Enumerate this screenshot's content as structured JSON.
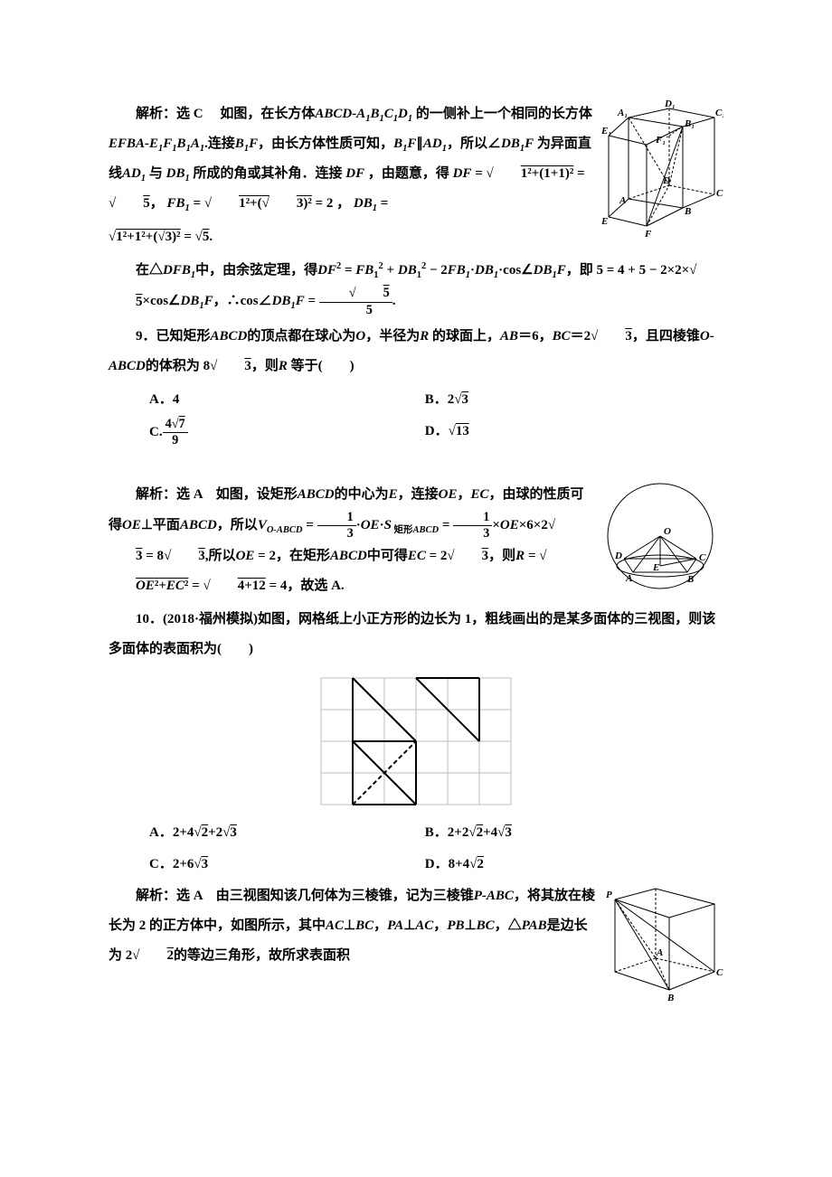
{
  "sol8": {
    "prefix": "解析：选 C　  如图，在长方体",
    "cuboid1": "ABCD-A",
    "t1": " 的一侧补上一个相同的长方体",
    "cuboid2": "EFBA-E",
    "t2": ".连接",
    "b1f": "B",
    "f": "F",
    "t3": "，由长方体性质可知，",
    "parallel": "∥",
    "ad1": "AD",
    "t4": "，所以∠",
    "db1f": "DB",
    "t5": " 为异面直线",
    "t6": " 与 ",
    "db1": "DB",
    "t7": " 所成的角或其补角．连接 ",
    "df": "DF",
    "t8": " ，由题意，得",
    "df_eq": " =",
    "eq1a": "1²+(1+1)²",
    "eq1b": "5",
    "fb1_eq": " = ",
    "eq2a": "1²+(",
    "eq2b": "3",
    "eq2c": ")²",
    "eq2_result": " = 2 ， ",
    "db1_eq": " = ",
    "eq3a": "1²+1²+(",
    "eq3b": "3",
    "eq3c": ")²",
    "eq3_result": "5",
    "period": ".",
    "line_cos1": "在△",
    "dfb1": "DFB",
    "line_cos2": "中，由余弦定理，得",
    "df2": "DF",
    "fb2": "FB",
    "plus": " + ",
    "minus": " − 2",
    "dot": "·",
    "cos_prefix": "cos∠",
    "ie": "，即 5 = 4 + 5 − 2×2×",
    "times": "×cos∠",
    "therefore": "，∴cos∠",
    "eq_final": " = ",
    "frac_num": "5",
    "frac_den": "5",
    "fig8": {
      "labels": [
        "D₁",
        "C₁",
        "A₁",
        "B₁",
        "E₁",
        "F₁",
        "D",
        "C",
        "A",
        "B",
        "E",
        "F"
      ],
      "stroke": "#000000"
    }
  },
  "q9": {
    "num": "9．",
    "text1": "已知矩形",
    "abcd": "ABCD",
    "text2": "的顶点都在球心为",
    "o": "O",
    "text3": "，半径为",
    "r": "R",
    "text4": " 的球面上，",
    "ab": "AB",
    "eq6": "＝6，",
    "bc": "BC",
    "eq2s3": "＝2",
    "s3": "3",
    "text5": "，且四棱锥",
    "oabcd": "O-ABCD",
    "text6": "的体积为 8",
    "text7": "，则",
    "text8": " 等于(　　)",
    "optA": "A．4",
    "optB_pre": "B．2",
    "optB_sqrt": "3",
    "optC_pre": "C.",
    "optC_num": "4",
    "optC_num2": "7",
    "optC_den": "9",
    "optD_pre": "D．",
    "optD_sqrt": "13"
  },
  "sol9": {
    "prefix": "解析：选 A　如图，设矩形",
    "abcd": "ABCD",
    "t1": "的中心为",
    "e": "E",
    "t2": "，连接",
    "oe": "OE",
    "ec": "EC",
    "t3": "，由球的性质可得",
    "perp": "⊥平面",
    "t4": "，所以",
    "v": "V",
    "voabcd": "O-ABCD",
    "eq": " = ",
    "frac13_n": "1",
    "frac13_d": "3",
    "dot": "·",
    "s": "S",
    "rect_label": " 矩形",
    "times": "×",
    "oe_eq": "OE",
    "six": "6×2",
    "s3": "3",
    "eq8s3": " = 8",
    "so": ",所以",
    "oe2": " = 2，在矩形",
    "t5": "中可得",
    "ec2": " = 2",
    "then": "，则",
    "r": "R",
    "eqr": " = ",
    "oe_sq": "OE",
    "plus": "+",
    "ec_sq": "EC",
    "eq_num": "4+12",
    "eq4": " = 4，故选 A.",
    "fig9": {
      "labels": [
        "O",
        "D",
        "C",
        "A",
        "B",
        "E"
      ],
      "stroke": "#000000"
    }
  },
  "q10": {
    "num": "10．",
    "source": "(2018·福州模拟)",
    "text1": "如图，网格纸上小正方形的边长为 1，粗线画出的是某多面体的三视图，则该多面体的表面积为(　　)",
    "optA_pre": "A．2+4",
    "optA_s1": "2",
    "optA_mid": "+2",
    "optA_s2": "3",
    "optB_pre": "B．2+2",
    "optB_s1": "2",
    "optB_mid": "+4",
    "optB_s2": "3",
    "optC_pre": "C．2+6",
    "optC_s1": "3",
    "optD_pre": "D．8+4",
    "optD_s1": "2",
    "grid": {
      "cols": 6,
      "rows": 4,
      "cell": 35,
      "grid_color": "#bdbdbd",
      "line_color": "#000000"
    }
  },
  "sol10": {
    "prefix": "解析：选 A　由三视图知该几何体为三棱锥，记为三棱锥",
    "pabc": "P-ABC",
    "t1": "，将其放在棱长为 2 的正方体中，如图所示，其中",
    "ac": "AC",
    "perp": "⊥",
    "bc": "BC",
    "pa": "PA",
    "pb": "PB",
    "pab": "PAB",
    "t2": "，△",
    "t3": "是边长为 2",
    "s2": "2",
    "t4": "的等边三角形，故所求表面积",
    "fig10": {
      "labels": [
        "P",
        "A",
        "B",
        "C"
      ],
      "stroke": "#000000"
    }
  }
}
